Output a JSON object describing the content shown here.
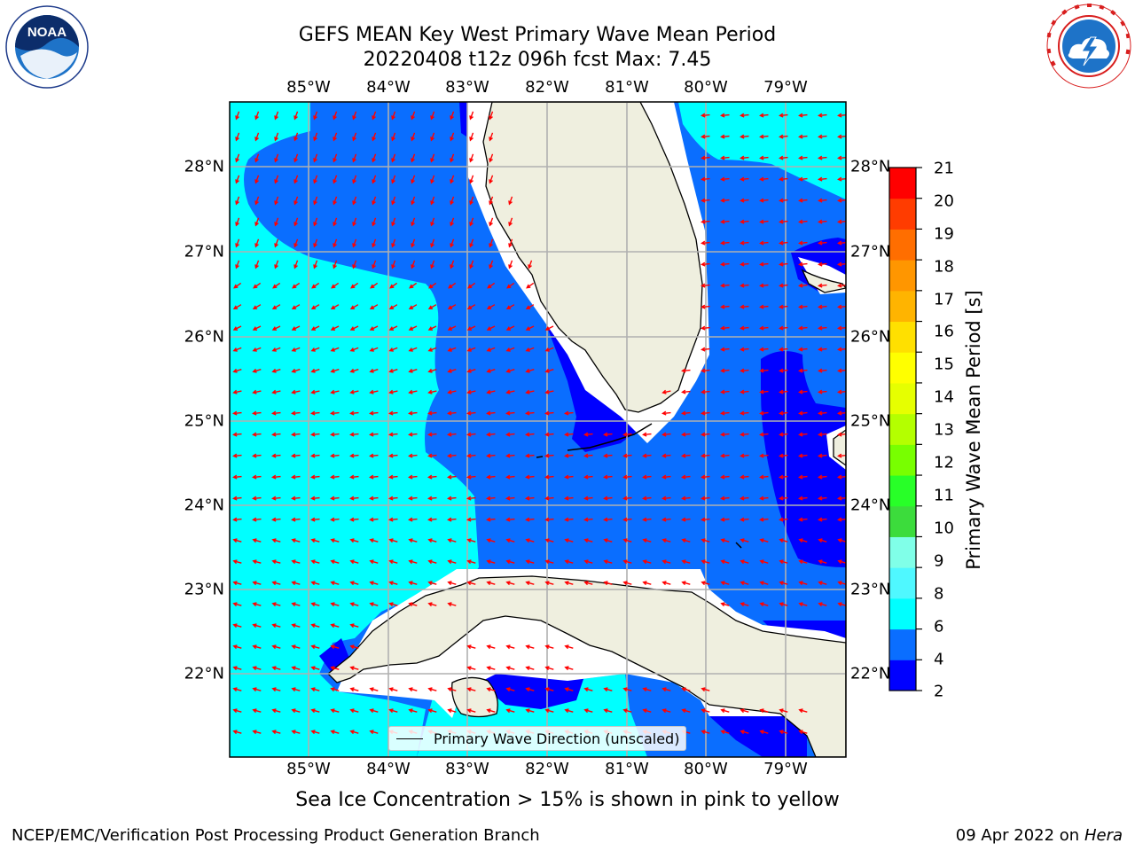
{
  "title": {
    "line1": "GEFS MEAN Key West Primary Wave Mean Period",
    "line2": "20220408 t12z 096h fcst   Max: 7.45"
  },
  "lon_ticks": [
    "85°W",
    "84°W",
    "83°W",
    "82°W",
    "81°W",
    "80°W",
    "79°W"
  ],
  "lat_ticks": [
    "28°N",
    "27°N",
    "26°N",
    "25°N",
    "24°N",
    "23°N",
    "22°N"
  ],
  "colorbar": {
    "label": "Primary Wave Mean Period [s]",
    "ticks": [
      "21",
      "20",
      "19",
      "18",
      "17",
      "16",
      "15",
      "14",
      "13",
      "12",
      "11",
      "10",
      "9",
      "8",
      "6",
      "4",
      "2"
    ],
    "colors": [
      "#0000ff",
      "#0a6eff",
      "#00ffff",
      "#4ff8ff",
      "#80ffe8",
      "#3cdc3c",
      "#28ff28",
      "#78ff00",
      "#b4ff00",
      "#e6ff00",
      "#ffff00",
      "#ffe000",
      "#ffb400",
      "#ff9600",
      "#ff6e00",
      "#ff3c00",
      "#ff0000"
    ]
  },
  "map_colors": {
    "land": "#efefdf",
    "period_2_4": "#0000ff",
    "period_4_6": "#0a6eff",
    "period_6_8": "#00ffff",
    "arrow": "#ff0000",
    "grid": "#b0b0b0"
  },
  "legend": {
    "label": "Primary Wave Direction (unscaled)"
  },
  "sea_ice_note": "Sea Ice Concentration > 15% is shown in pink to yellow",
  "footer": {
    "left": "NCEP/EMC/Verification Post Processing Product Generation Branch",
    "right_date": "09 Apr 2022 on",
    "right_host": "Hera"
  },
  "logos": {
    "left_text": "NOAA"
  }
}
